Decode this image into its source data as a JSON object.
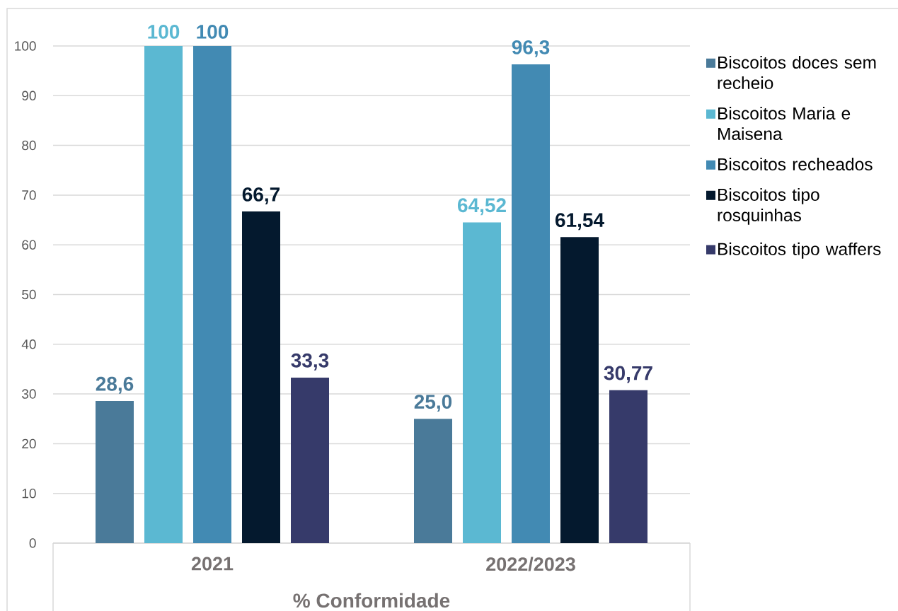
{
  "chart_data": {
    "type": "bar",
    "categories": [
      "2021",
      "2022/2023"
    ],
    "xlabel": "% Conformidade",
    "series": [
      {
        "name": "Biscoitos doces sem recheio",
        "color": "#4a7a99",
        "values": [
          28.6,
          25.0
        ],
        "value_labels": [
          "28,6",
          "25,0"
        ]
      },
      {
        "name": "Biscoitos Maria e Maisena",
        "color": "#5bb8d2",
        "values": [
          100,
          64.52
        ],
        "value_labels": [
          "100",
          "64,52"
        ]
      },
      {
        "name": "Biscoitos recheados",
        "color": "#428ab3",
        "values": [
          100,
          96.3
        ],
        "value_labels": [
          "100",
          "96,3"
        ]
      },
      {
        "name": "Biscoitos tipo rosquinhas",
        "color": "#04192e",
        "values": [
          66.7,
          61.54
        ],
        "value_labels": [
          "66,7",
          "61,54"
        ]
      },
      {
        "name": "Biscoitos tipo waffers",
        "color": "#363a6a",
        "values": [
          33.3,
          30.77
        ],
        "value_labels": [
          "33,3",
          "30,77"
        ]
      }
    ],
    "ylim": [
      0,
      100
    ],
    "yticks": [
      0,
      10,
      20,
      30,
      40,
      50,
      60,
      70,
      80,
      90,
      100
    ],
    "grid": "y",
    "legend": "right"
  }
}
